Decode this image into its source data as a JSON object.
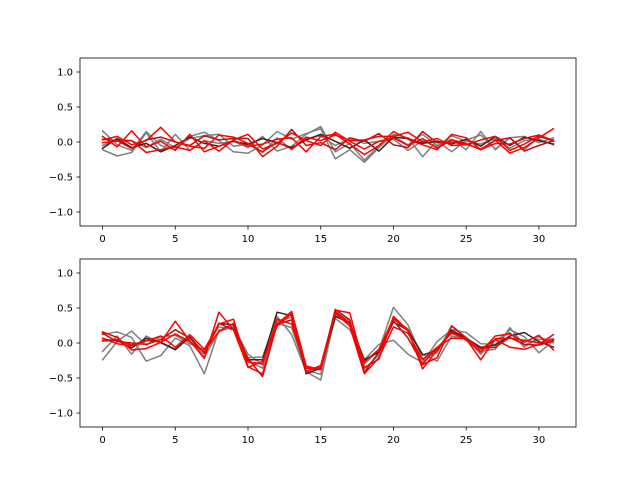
{
  "chart_data": [
    {
      "type": "line",
      "title": "",
      "xlabel": "",
      "ylabel": "",
      "xlim": [
        -1.55,
        32.55
      ],
      "ylim": [
        -1.2,
        1.2
      ],
      "xticks": [
        0,
        5,
        10,
        15,
        20,
        25,
        30
      ],
      "yticks": [
        -1.0,
        -0.5,
        0.0,
        0.5,
        1.0
      ],
      "xtick_labels": [
        "0",
        "5",
        "10",
        "15",
        "20",
        "25",
        "30"
      ],
      "ytick_labels": [
        "−1.0",
        "−0.5",
        "0.0",
        "0.5",
        "1.0"
      ],
      "grid": false,
      "x": [
        0,
        1,
        2,
        3,
        4,
        5,
        6,
        7,
        8,
        9,
        10,
        11,
        12,
        13,
        14,
        15,
        16,
        17,
        18,
        19,
        20,
        21,
        22,
        23,
        24,
        25,
        26,
        27,
        28,
        29,
        30,
        31
      ],
      "series": [
        {
          "color": "#7f7f7f",
          "values": [
            0.16,
            -0.04,
            -0.12,
            0.15,
            -0.05,
            -0.11,
            0.08,
            0.14,
            0.02,
            -0.14,
            -0.16,
            -0.04,
            0.15,
            0.04,
            0.12,
            0.19,
            -0.24,
            -0.11,
            -0.29,
            -0.08,
            0.11,
            0.06,
            -0.21,
            0.02,
            -0.14,
            0.03,
            0.1,
            -0.1,
            0.06,
            -0.11,
            0.07,
            0.03
          ]
        },
        {
          "color": "#7f7f7f",
          "values": [
            -0.11,
            -0.2,
            -0.15,
            0.13,
            -0.14,
            0.11,
            -0.12,
            0.02,
            -0.02,
            0.01,
            -0.08,
            0.08,
            -0.13,
            -0.06,
            0.11,
            0.22,
            -0.14,
            -0.02,
            -0.26,
            -0.06,
            0.08,
            -0.04,
            0.11,
            -0.05,
            0.04,
            -0.11,
            0.15,
            -0.11,
            0.06,
            0.08,
            -0.01,
            0.06
          ]
        },
        {
          "color": "#7f7f7f",
          "values": [
            -0.05,
            0.04,
            0.02,
            -0.08,
            0.04,
            -0.08,
            0.05,
            0.09,
            0.11,
            -0.06,
            -0.03,
            -0.15,
            0.06,
            -0.11,
            0.05,
            0.09,
            -0.05,
            0.05,
            -0.02,
            0.01,
            0.04,
            -0.12,
            0.02,
            -0.07,
            0.09,
            0.01,
            -0.03,
            0.05,
            -0.09,
            0.02,
            0.04,
            -0.04
          ]
        },
        {
          "color": "#3f1f1f",
          "values": [
            -0.09,
            0.05,
            -0.08,
            -0.02,
            -0.14,
            -0.05,
            0.07,
            -0.02,
            -0.06,
            0.01,
            -0.03,
            0.05,
            -0.01,
            -0.08,
            0.03,
            0.11,
            0.01,
            -0.09,
            0.03,
            -0.13,
            0.07,
            0.05,
            -0.02,
            0.01,
            -0.03,
            0.04,
            -0.06,
            0.08,
            -0.05,
            0.07,
            0.02,
            -0.03
          ]
        },
        {
          "color": "#bf0f0f",
          "values": [
            0.04,
            0.02,
            -0.09,
            0.03,
            0.07,
            0.0,
            -0.05,
            0.09,
            0.03,
            0.05,
            0.05,
            -0.21,
            -0.06,
            0.18,
            -0.05,
            -0.01,
            -0.11,
            0.06,
            0.01,
            0.12,
            -0.04,
            -0.08,
            0.15,
            -0.01,
            0.0,
            -0.03,
            -0.1,
            0.02,
            0.06,
            -0.13,
            -0.05,
            0.02
          ]
        },
        {
          "color": "#ff0000",
          "values": [
            0.08,
            -0.07,
            0.16,
            -0.07,
            0.01,
            -0.12,
            0.11,
            -0.14,
            -0.06,
            0.02,
            -0.06,
            -0.03,
            0.04,
            0.06,
            -0.14,
            0.08,
            0.11,
            -0.03,
            -0.18,
            -0.05,
            0.15,
            0.04,
            -0.04,
            -0.11,
            0.11,
            0.06,
            -0.11,
            0.03,
            -0.16,
            -0.08,
            0.06,
            0.19
          ]
        },
        {
          "color": "#ff0000",
          "values": [
            0.03,
            0.08,
            -0.04,
            0.02,
            0.21,
            0.0,
            -0.06,
            -0.09,
            0.1,
            0.07,
            -0.02,
            -0.14,
            0.0,
            -0.1,
            0.07,
            0.02,
            0.1,
            0.02,
            0.03,
            0.08,
            0.08,
            0.14,
            0.0,
            0.05,
            -0.05,
            -0.04,
            0.03,
            0.08,
            -0.12,
            -0.03,
            0.09,
            0.01
          ]
        },
        {
          "color": "#ff0000",
          "values": [
            -0.01,
            0.01,
            0.02,
            -0.15,
            -0.11,
            -0.07,
            -0.12,
            0.02,
            -0.13,
            0.03,
            0.11,
            -0.1,
            -0.02,
            0.13,
            0.02,
            -0.05,
            0.14,
            0.01,
            -0.1,
            0.01,
            0.06,
            -0.05,
            0.05,
            -0.09,
            0.03,
            -0.02,
            -0.11,
            -0.02,
            -0.03,
            0.05,
            0.1,
            0.02
          ]
        }
      ]
    },
    {
      "type": "line",
      "title": "",
      "xlabel": "",
      "ylabel": "",
      "xlim": [
        -1.55,
        32.55
      ],
      "ylim": [
        -1.2,
        1.2
      ],
      "xticks": [
        0,
        5,
        10,
        15,
        20,
        25,
        30
      ],
      "yticks": [
        -1.0,
        -0.5,
        0.0,
        0.5,
        1.0
      ],
      "xtick_labels": [
        "0",
        "5",
        "10",
        "15",
        "20",
        "25",
        "30"
      ],
      "ytick_labels": [
        "−1.0",
        "−0.5",
        "0.0",
        "0.5",
        "1.0"
      ],
      "grid": false,
      "x": [
        0,
        1,
        2,
        3,
        4,
        5,
        6,
        7,
        8,
        9,
        10,
        11,
        12,
        13,
        14,
        15,
        16,
        17,
        18,
        19,
        20,
        21,
        22,
        23,
        24,
        25,
        26,
        27,
        28,
        29,
        30,
        31
      ],
      "series": [
        {
          "color": "#7f7f7f",
          "values": [
            0.12,
            0.16,
            0.08,
            -0.26,
            -0.18,
            0.07,
            -0.04,
            -0.44,
            0.18,
            0.22,
            -0.21,
            -0.2,
            0.38,
            0.12,
            -0.41,
            -0.53,
            0.4,
            0.27,
            -0.3,
            -0.1,
            0.51,
            0.26,
            -0.22,
            -0.14,
            0.25,
            0.08,
            -0.12,
            -0.09,
            0.22,
            -0.03,
            0.05,
            0.06
          ]
        },
        {
          "color": "#7f7f7f",
          "values": [
            -0.24,
            0.02,
            0.17,
            -0.03,
            0.09,
            0.11,
            -0.01,
            -0.1,
            0.23,
            0.19,
            -0.25,
            -0.36,
            0.28,
            0.22,
            -0.39,
            -0.45,
            0.45,
            0.31,
            -0.37,
            -0.17,
            0.35,
            0.2,
            -0.16,
            -0.26,
            0.1,
            0.07,
            -0.16,
            0.04,
            0.15,
            -0.06,
            0.09,
            0.0
          ]
        },
        {
          "color": "#7f7f7f",
          "values": [
            -0.12,
            0.1,
            -0.16,
            0.1,
            0.0,
            -0.1,
            0.08,
            -0.2,
            0.16,
            0.24,
            -0.16,
            -0.31,
            0.31,
            0.37,
            -0.34,
            -0.38,
            0.35,
            0.19,
            -0.24,
            -0.02,
            0.04,
            -0.16,
            -0.28,
            0.02,
            0.19,
            0.15,
            -0.01,
            -0.02,
            0.19,
            0.09,
            -0.14,
            0.03
          ]
        },
        {
          "color": "#3f1f1f",
          "values": [
            0.03,
            0.04,
            -0.07,
            0.07,
            0.01,
            -0.09,
            0.09,
            -0.15,
            0.28,
            0.26,
            -0.24,
            -0.24,
            0.44,
            0.39,
            -0.44,
            -0.36,
            0.38,
            0.29,
            -0.24,
            -0.13,
            0.3,
            0.18,
            -0.17,
            -0.11,
            0.18,
            0.07,
            -0.06,
            -0.03,
            0.1,
            0.15,
            0.02,
            -0.06
          ]
        },
        {
          "color": "#bf0f0f",
          "values": [
            0.14,
            0.02,
            0.0,
            -0.02,
            0.05,
            0.19,
            0.07,
            -0.14,
            0.28,
            0.19,
            -0.22,
            -0.48,
            0.27,
            0.33,
            -0.4,
            -0.35,
            0.48,
            0.33,
            -0.42,
            -0.13,
            0.32,
            0.07,
            -0.3,
            -0.07,
            0.14,
            0.06,
            -0.08,
            -0.06,
            0.08,
            -0.02,
            -0.03,
            0.03
          ]
        },
        {
          "color": "#ff0000",
          "values": [
            0.16,
            0.08,
            -0.1,
            -0.08,
            0.01,
            0.31,
            0.03,
            -0.22,
            0.44,
            0.19,
            -0.35,
            -0.26,
            0.24,
            0.42,
            -0.41,
            -0.32,
            0.45,
            0.28,
            -0.27,
            -0.09,
            0.35,
            0.17,
            -0.31,
            -0.21,
            0.24,
            0.07,
            -0.09,
            0.05,
            -0.06,
            -0.09,
            -0.02,
            0.12
          ]
        },
        {
          "color": "#ff0000",
          "values": [
            0.07,
            -0.01,
            -0.04,
            0.03,
            0.1,
            -0.06,
            0.12,
            -0.09,
            0.27,
            0.34,
            -0.34,
            -0.44,
            0.27,
            0.45,
            -0.33,
            -0.38,
            0.47,
            0.43,
            -0.35,
            -0.23,
            0.38,
            0.18,
            -0.37,
            -0.1,
            0.16,
            0.04,
            -0.13,
            0.1,
            0.13,
            0.01,
            0.11,
            -0.1
          ]
        },
        {
          "color": "#ff0000",
          "values": [
            0.04,
            0.05,
            -0.03,
            0.04,
            0.01,
            0.13,
            0.02,
            -0.13,
            0.17,
            0.28,
            -0.27,
            -0.3,
            0.34,
            0.27,
            -0.36,
            -0.37,
            0.43,
            0.24,
            -0.44,
            -0.21,
            0.23,
            0.14,
            -0.24,
            -0.06,
            0.07,
            0.06,
            -0.24,
            0.06,
            0.07,
            0.04,
            0.0,
            0.05
          ]
        }
      ]
    }
  ]
}
